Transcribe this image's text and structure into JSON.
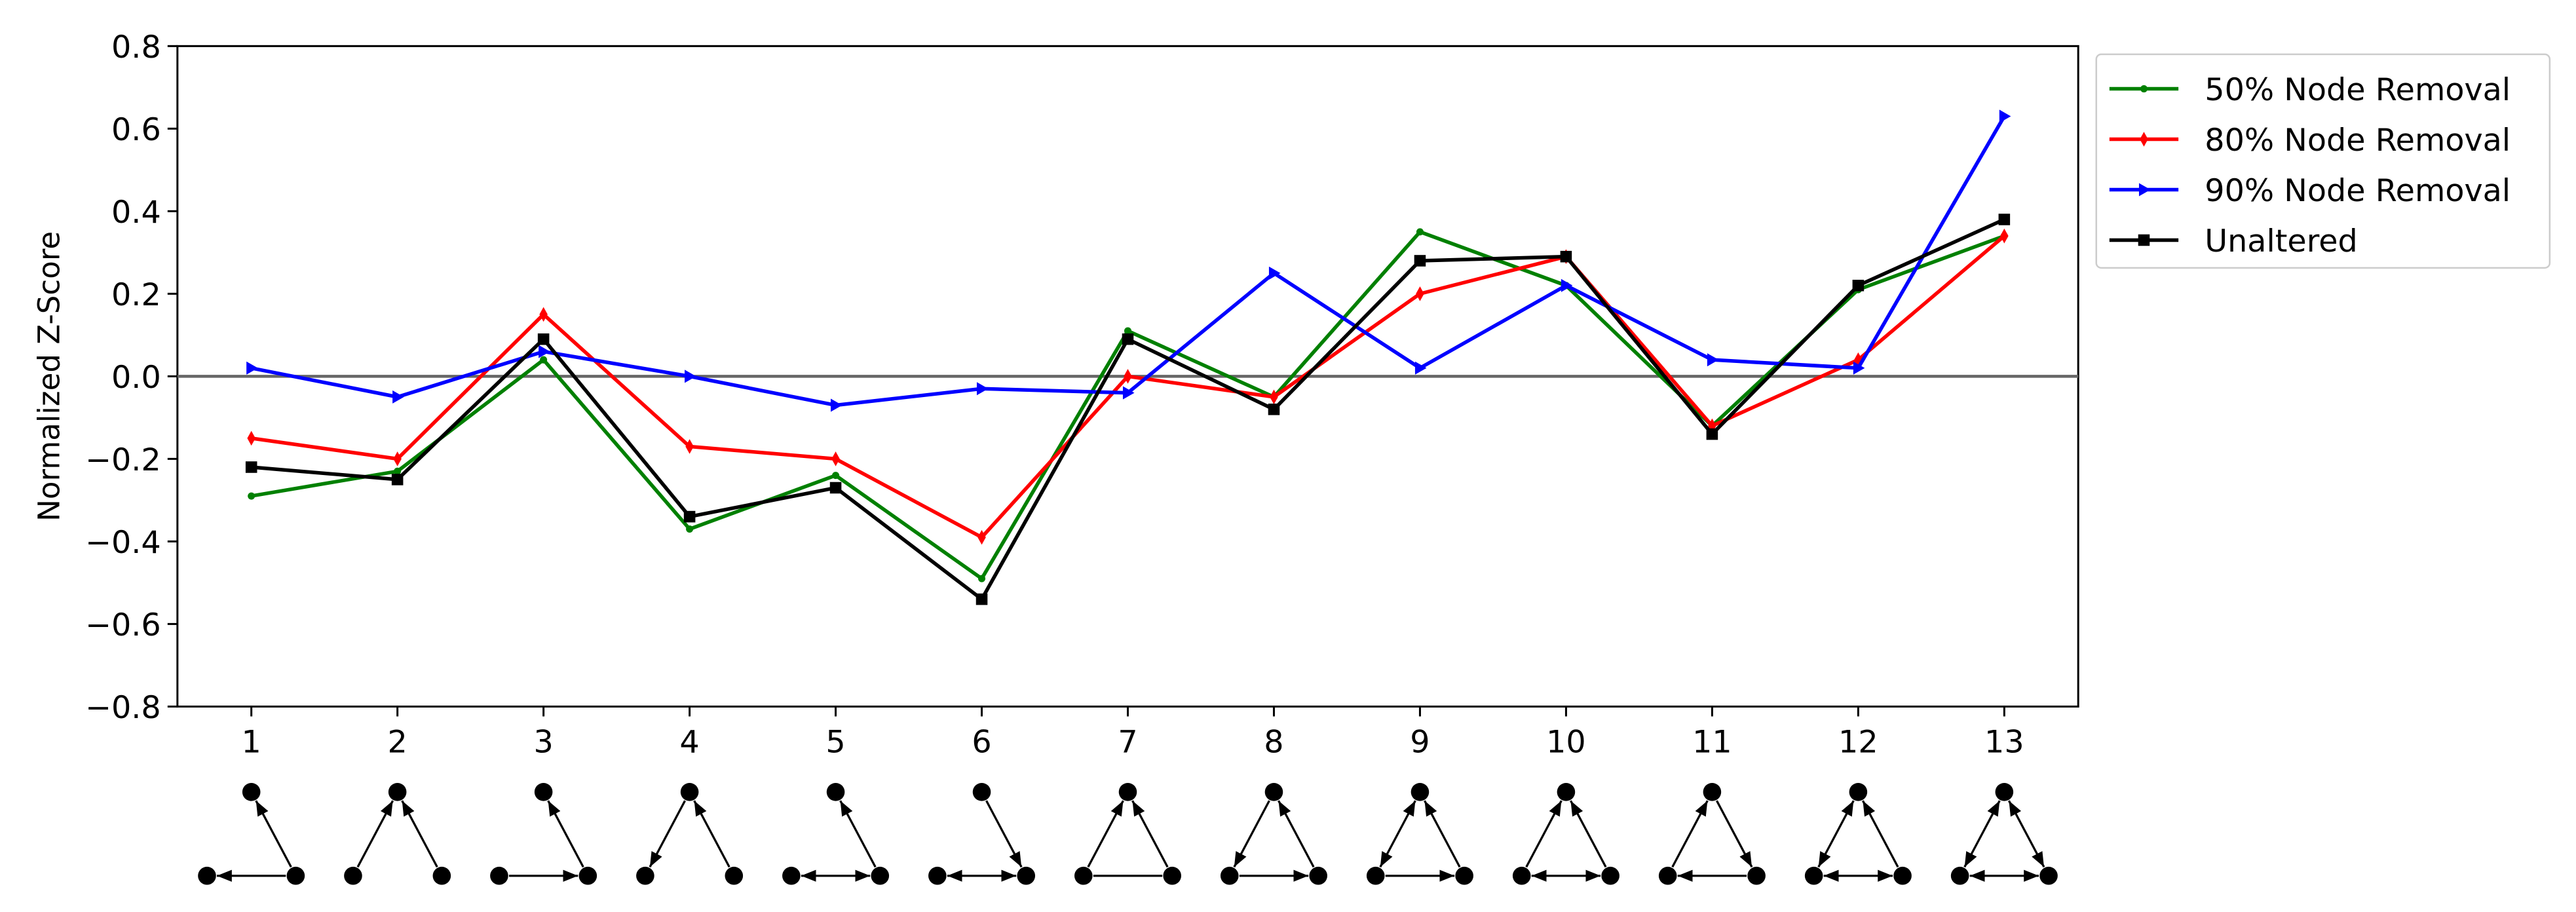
{
  "chart_data": {
    "type": "line",
    "y_label": "Normalized Z-Score",
    "categories": [
      "1",
      "2",
      "3",
      "4",
      "5",
      "6",
      "7",
      "8",
      "9",
      "10",
      "11",
      "12",
      "13"
    ],
    "ylim": [
      -0.8,
      0.8
    ],
    "yticks": [
      {
        "value": -0.8,
        "label": "−0.8"
      },
      {
        "value": -0.6,
        "label": "−0.6"
      },
      {
        "value": -0.4,
        "label": "−0.4"
      },
      {
        "value": -0.2,
        "label": "−0.2"
      },
      {
        "value": 0,
        "label": "0.0"
      },
      0.2,
      0.4,
      0.6,
      0.8
    ],
    "hline": 0,
    "legend": "upper-right-outside",
    "series": [
      {
        "name": "50% Node Removal",
        "color": "#008000",
        "marker": "point",
        "values": [
          -0.29,
          -0.23,
          0.04,
          -0.37,
          -0.24,
          -0.49,
          0.11,
          -0.05,
          0.35,
          0.22,
          -0.12,
          0.21,
          0.34
        ]
      },
      {
        "name": "80% Node Removal",
        "color": "#ff0000",
        "marker": "thin-diamond",
        "values": [
          -0.15,
          -0.2,
          0.15,
          -0.17,
          -0.2,
          -0.39,
          0.0,
          -0.05,
          0.2,
          0.29,
          -0.12,
          0.04,
          0.34
        ]
      },
      {
        "name": "90% Node Removal",
        "color": "#0000ff",
        "marker": "triangle-right",
        "values": [
          0.02,
          -0.05,
          0.06,
          0.0,
          -0.07,
          -0.03,
          -0.04,
          0.25,
          0.02,
          0.22,
          0.04,
          0.02,
          0.63
        ]
      },
      {
        "name": "Unaltered",
        "color": "#000000",
        "marker": "square",
        "values": [
          -0.22,
          -0.25,
          0.09,
          -0.34,
          -0.27,
          -0.54,
          0.09,
          -0.08,
          0.28,
          0.29,
          -0.14,
          0.22,
          0.38
        ]
      }
    ]
  }
}
